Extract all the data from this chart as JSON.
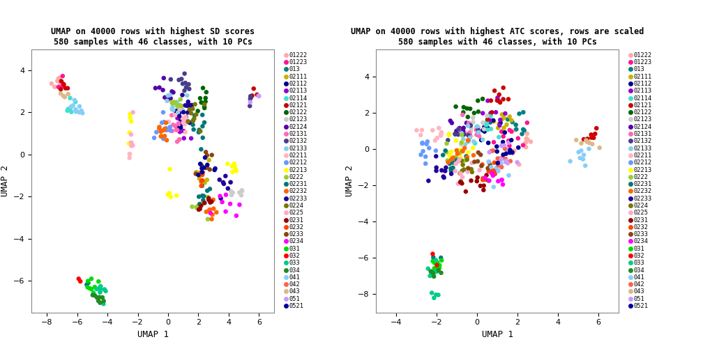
{
  "title1": "UMAP on 40000 rows with highest SD scores\n580 samples with 46 classes, with 10 PCs",
  "title2": "UMAP on 40000 rows with highest ATC scores, rows are scaled\n580 samples with 46 classes, with 10 PCs",
  "xlabel": "UMAP 1",
  "ylabel": "UMAP 2",
  "classes": [
    "01222",
    "01223",
    "013",
    "02111",
    "02112",
    "02113",
    "02114",
    "02121",
    "02122",
    "02123",
    "02124",
    "02131",
    "02132",
    "02133",
    "02211",
    "02212",
    "02213",
    "0222",
    "02231",
    "02232",
    "02233",
    "0224",
    "0225",
    "0231",
    "0232",
    "0233",
    "0234",
    "031",
    "032",
    "033",
    "034",
    "041",
    "042",
    "043",
    "051",
    "0521"
  ],
  "class_colors": {
    "01222": "#FFAAAA",
    "01223": "#FF1493",
    "013": "#008080",
    "02111": "#C8B400",
    "02112": "#00008B",
    "02113": "#9400D3",
    "02114": "#40E0D0",
    "02121": "#CC0000",
    "02122": "#006400",
    "02123": "#CCCCCC",
    "02124": "#5500AA",
    "02131": "#FF69B4",
    "02132": "#483D8B",
    "02133": "#87CEEB",
    "02211": "#FFB6C1",
    "02212": "#6699FF",
    "02213": "#FFFF00",
    "0222": "#9ACD32",
    "02231": "#007777",
    "02232": "#FF6600",
    "02233": "#220099",
    "0224": "#777700",
    "0225": "#FFAACC",
    "0231": "#990000",
    "0232": "#FF4500",
    "0233": "#8B4513",
    "0234": "#FF00FF",
    "031": "#00DD00",
    "032": "#FF0000",
    "033": "#00CC88",
    "034": "#228B22",
    "041": "#87CEFA",
    "042": "#FF6347",
    "043": "#DEB887",
    "051": "#CC99FF",
    "0521": "#000099"
  },
  "plot1_xlim": [
    -9,
    7
  ],
  "plot1_ylim": [
    -7.5,
    5
  ],
  "plot2_xlim": [
    -5,
    7
  ],
  "plot2_ylim": [
    -9,
    5.5
  ],
  "background_color": "#FFFFFF",
  "panel_bg": "#FFFFFF"
}
